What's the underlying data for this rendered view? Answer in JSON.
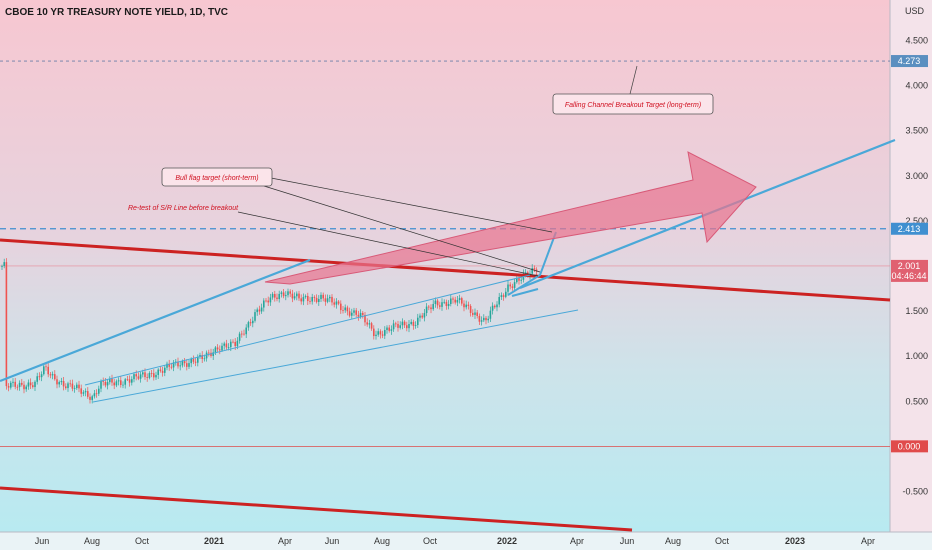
{
  "chart_data": {
    "type": "candlestick",
    "title": "CBOE 10 YR TREASURY NOTE YIELD, 1D, TVC",
    "currency": "USD",
    "y_ticks": [
      "-0.500",
      "0.000",
      "0.500",
      "1.000",
      "1.500",
      "2.000",
      "2.500",
      "3.000",
      "3.500",
      "4.000",
      "4.500"
    ],
    "x_ticks": [
      "Jun",
      "Aug",
      "Oct",
      "2021",
      "Apr",
      "Jun",
      "Aug",
      "Oct",
      "2022",
      "Apr",
      "Jun",
      "Aug",
      "Oct",
      "2023",
      "Apr"
    ],
    "ylim": [
      -0.95,
      4.95
    ],
    "price_tags": [
      {
        "label": "4.273",
        "value": 4.273,
        "color": "#5a8fc0"
      },
      {
        "label": "2.413",
        "value": 2.413,
        "color": "#3f8fd0"
      },
      {
        "label": "2.001",
        "value": 2.001,
        "color": "#e06070"
      },
      {
        "label": "0.000",
        "value": 0.0,
        "color": "#e04b4b"
      }
    ],
    "countdown": "04:46:44",
    "annotations": [
      {
        "text": "Falling Channel Breakout Target (long-term)"
      },
      {
        "text": "Bull flag target (short-term)"
      },
      {
        "text": "Re-test of S/R Line before breakout"
      }
    ],
    "colors": {
      "up": "#26a69a",
      "down": "#ef5350",
      "trend_red": "#cc2222",
      "trend_blue": "#4aa8d8",
      "arrow_fill": "#e8738e"
    }
  }
}
